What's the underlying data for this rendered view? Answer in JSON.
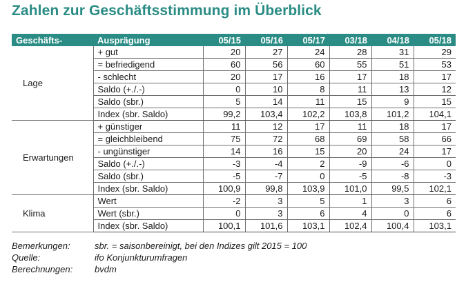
{
  "title": "Zahlen zur Geschäftsstimmung im Überblick",
  "table": {
    "header": {
      "group": "Geschäfts-",
      "type": "Ausprägung",
      "periods": [
        "05/15",
        "05/16",
        "05/17",
        "03/18",
        "04/18",
        "05/18"
      ]
    },
    "groups": [
      {
        "label": "Lage",
        "rows": [
          {
            "label": "+ gut",
            "values": [
              "20",
              "27",
              "24",
              "28",
              "31",
              "29"
            ]
          },
          {
            "label": "= befriedigend",
            "values": [
              "60",
              "56",
              "60",
              "55",
              "51",
              "53"
            ]
          },
          {
            "label": "- schlecht",
            "values": [
              "20",
              "17",
              "16",
              "17",
              "18",
              "17"
            ]
          },
          {
            "label": "Saldo (+./.-)",
            "values": [
              "0",
              "10",
              "8",
              "11",
              "13",
              "12"
            ]
          },
          {
            "label": "Saldo (sbr.)",
            "values": [
              "5",
              "14",
              "11",
              "15",
              "9",
              "15"
            ]
          },
          {
            "label": "Index (sbr. Saldo)",
            "values": [
              "99,2",
              "103,4",
              "102,2",
              "103,8",
              "101,2",
              "104,1"
            ]
          }
        ]
      },
      {
        "label": "Erwartungen",
        "rows": [
          {
            "label": "+ günstiger",
            "values": [
              "11",
              "12",
              "17",
              "11",
              "18",
              "17"
            ]
          },
          {
            "label": "= gleichbleibend",
            "values": [
              "75",
              "72",
              "68",
              "69",
              "58",
              "66"
            ]
          },
          {
            "label": "- ungünstiger",
            "values": [
              "14",
              "16",
              "15",
              "20",
              "24",
              "17"
            ]
          },
          {
            "label": "Saldo (+./.-)",
            "values": [
              "-3",
              "-4",
              "2",
              "-9",
              "-6",
              "0"
            ]
          },
          {
            "label": "Saldo (sbr.)",
            "values": [
              "-5",
              "-7",
              "0",
              "-5",
              "-8",
              "-3"
            ]
          },
          {
            "label": "Index (sbr. Saldo)",
            "values": [
              "100,9",
              "99,8",
              "103,9",
              "101,0",
              "99,5",
              "102,1"
            ]
          }
        ]
      },
      {
        "label": "Klima",
        "rows": [
          {
            "label": "Wert",
            "values": [
              "-2",
              "3",
              "5",
              "1",
              "3",
              "6"
            ]
          },
          {
            "label": "Wert (sbr.)",
            "values": [
              "0",
              "3",
              "6",
              "4",
              "0",
              "6"
            ]
          },
          {
            "label": "Index (sbr. Saldo)",
            "values": [
              "100,1",
              "101,6",
              "103,1",
              "102,4",
              "100,4",
              "103,1"
            ]
          }
        ]
      }
    ]
  },
  "notes": [
    {
      "label": "Bemerkungen:",
      "text": "sbr. = saisonbereinigt, bei den Indizes gilt 2015 = 100"
    },
    {
      "label": "Quelle:",
      "text": "ifo Konjunkturumfragen"
    },
    {
      "label": "Berechnungen:",
      "text": "bvdm"
    }
  ]
}
